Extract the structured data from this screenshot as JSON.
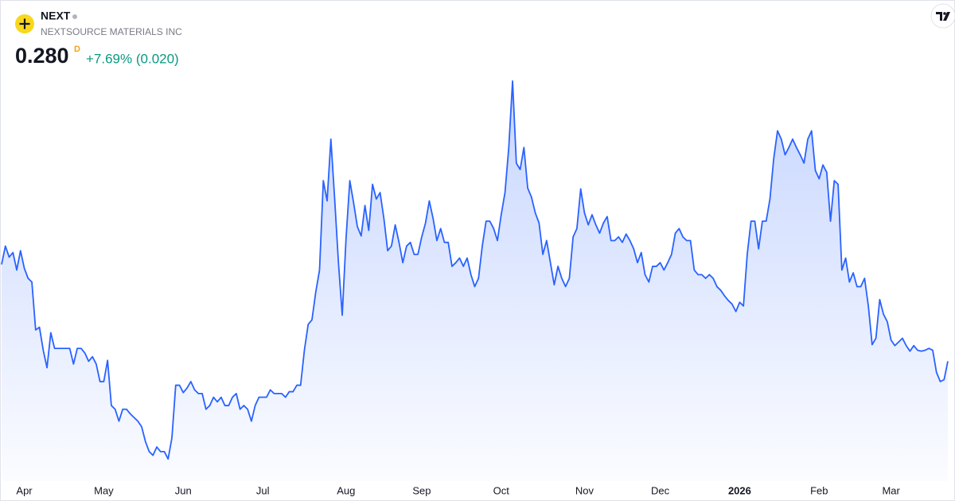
{
  "header": {
    "symbol": "NEXT",
    "name": "NEXTSOURCE MATERIALS INC",
    "price": "0.280",
    "interval": "D",
    "change": "+7.69% (0.020)"
  },
  "chart_data": {
    "type": "line",
    "area": true,
    "color": "#2962ff",
    "xlim": [
      0,
      250
    ],
    "ylim": [
      0.15,
      0.59
    ],
    "xticks": [
      {
        "value": 6,
        "label": "Apr"
      },
      {
        "value": 27,
        "label": "May"
      },
      {
        "value": 48,
        "label": "Jun"
      },
      {
        "value": 69,
        "label": "Jul"
      },
      {
        "value": 91,
        "label": "Aug"
      },
      {
        "value": 111,
        "label": "Sep"
      },
      {
        "value": 132,
        "label": "Oct"
      },
      {
        "value": 154,
        "label": "Nov"
      },
      {
        "value": 174,
        "label": "Dec"
      },
      {
        "value": 195,
        "label": "2026"
      },
      {
        "value": 216,
        "label": "Feb"
      },
      {
        "value": 235,
        "label": "Mar"
      }
    ],
    "values": [
      0.385,
      0.405,
      0.393,
      0.398,
      0.379,
      0.4,
      0.381,
      0.37,
      0.366,
      0.314,
      0.317,
      0.292,
      0.273,
      0.311,
      0.294,
      0.294,
      0.294,
      0.294,
      0.294,
      0.277,
      0.294,
      0.294,
      0.289,
      0.28,
      0.285,
      0.277,
      0.258,
      0.258,
      0.281,
      0.232,
      0.228,
      0.215,
      0.228,
      0.228,
      0.223,
      0.219,
      0.215,
      0.209,
      0.193,
      0.182,
      0.178,
      0.187,
      0.182,
      0.182,
      0.174,
      0.197,
      0.254,
      0.254,
      0.246,
      0.251,
      0.258,
      0.249,
      0.245,
      0.245,
      0.228,
      0.232,
      0.241,
      0.236,
      0.241,
      0.232,
      0.232,
      0.241,
      0.245,
      0.228,
      0.232,
      0.228,
      0.215,
      0.232,
      0.241,
      0.241,
      0.241,
      0.249,
      0.245,
      0.245,
      0.245,
      0.241,
      0.247,
      0.247,
      0.254,
      0.254,
      0.292,
      0.32,
      0.325,
      0.355,
      0.379,
      0.476,
      0.454,
      0.521,
      0.456,
      0.387,
      0.33,
      0.413,
      0.476,
      0.452,
      0.426,
      0.416,
      0.449,
      0.422,
      0.472,
      0.456,
      0.463,
      0.435,
      0.4,
      0.405,
      0.428,
      0.409,
      0.387,
      0.405,
      0.409,
      0.396,
      0.396,
      0.415,
      0.43,
      0.454,
      0.435,
      0.411,
      0.424,
      0.409,
      0.409,
      0.383,
      0.387,
      0.392,
      0.383,
      0.392,
      0.374,
      0.361,
      0.37,
      0.405,
      0.432,
      0.432,
      0.424,
      0.411,
      0.439,
      0.463,
      0.512,
      0.584,
      0.495,
      0.488,
      0.512,
      0.468,
      0.458,
      0.441,
      0.43,
      0.396,
      0.411,
      0.387,
      0.363,
      0.383,
      0.37,
      0.361,
      0.37,
      0.415,
      0.424,
      0.467,
      0.441,
      0.428,
      0.439,
      0.428,
      0.419,
      0.43,
      0.437,
      0.411,
      0.411,
      0.415,
      0.409,
      0.418,
      0.411,
      0.402,
      0.387,
      0.398,
      0.374,
      0.366,
      0.383,
      0.383,
      0.387,
      0.379,
      0.387,
      0.396,
      0.419,
      0.424,
      0.415,
      0.411,
      0.411,
      0.379,
      0.374,
      0.374,
      0.37,
      0.374,
      0.37,
      0.361,
      0.357,
      0.351,
      0.346,
      0.342,
      0.334,
      0.344,
      0.34,
      0.396,
      0.432,
      0.432,
      0.402,
      0.432,
      0.432,
      0.456,
      0.5,
      0.53,
      0.521,
      0.504,
      0.512,
      0.521,
      0.512,
      0.504,
      0.495,
      0.521,
      0.53,
      0.487,
      0.478,
      0.493,
      0.485,
      0.432,
      0.476,
      0.472,
      0.379,
      0.392,
      0.366,
      0.376,
      0.361,
      0.361,
      0.37,
      0.34,
      0.298,
      0.305,
      0.347,
      0.331,
      0.323,
      0.303,
      0.297,
      0.301,
      0.305,
      0.297,
      0.291,
      0.297,
      0.292,
      0.291,
      0.292,
      0.294,
      0.292,
      0.268,
      0.258,
      0.26,
      0.28
    ]
  }
}
